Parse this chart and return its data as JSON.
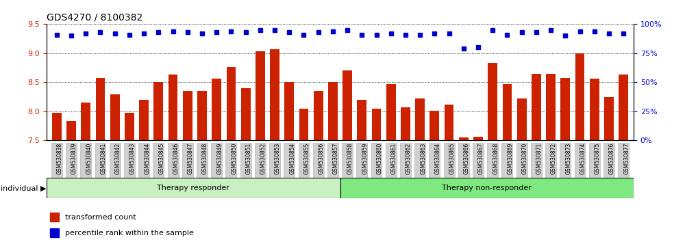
{
  "title": "GDS4270 / 8100382",
  "samples": [
    "GSM530838",
    "GSM530839",
    "GSM530840",
    "GSM530841",
    "GSM530842",
    "GSM530843",
    "GSM530844",
    "GSM530845",
    "GSM530846",
    "GSM530847",
    "GSM530848",
    "GSM530849",
    "GSM530850",
    "GSM530851",
    "GSM530852",
    "GSM530853",
    "GSM530854",
    "GSM530855",
    "GSM530856",
    "GSM530857",
    "GSM530858",
    "GSM530859",
    "GSM530860",
    "GSM530861",
    "GSM530862",
    "GSM530863",
    "GSM530864",
    "GSM530865",
    "GSM530866",
    "GSM530867",
    "GSM530868",
    "GSM530869",
    "GSM530870",
    "GSM530871",
    "GSM530872",
    "GSM530873",
    "GSM530874",
    "GSM530875",
    "GSM530876",
    "GSM530877"
  ],
  "bar_values": [
    7.97,
    7.83,
    8.15,
    8.58,
    8.29,
    7.98,
    8.2,
    8.5,
    8.63,
    8.35,
    8.35,
    8.56,
    8.76,
    8.4,
    9.03,
    9.07,
    8.5,
    8.05,
    8.35,
    8.5,
    8.7,
    8.2,
    8.05,
    8.47,
    8.07,
    8.22,
    8.01,
    8.12,
    7.55,
    7.56,
    8.83,
    8.47,
    8.22,
    8.65,
    8.65,
    8.58,
    9.0,
    8.56,
    8.25,
    8.63
  ],
  "percentile_values": [
    91,
    90,
    92,
    93,
    92,
    91,
    92,
    93,
    94,
    93,
    92,
    93,
    94,
    93,
    95,
    95,
    93,
    91,
    93,
    94,
    95,
    91,
    91,
    92,
    91,
    91,
    92,
    92,
    79,
    80,
    95,
    91,
    93,
    93,
    95,
    90,
    94,
    94,
    92,
    92
  ],
  "n_responder": 20,
  "n_nonresponder": 20,
  "group_labels": [
    "Therapy responder",
    "Therapy non-responder"
  ],
  "bar_color": "#cc2200",
  "dot_color": "#0000cc",
  "ylim_left": [
    7.5,
    9.5
  ],
  "ylim_right": [
    0,
    100
  ],
  "yticks_left": [
    7.5,
    8.0,
    8.5,
    9.0,
    9.5
  ],
  "yticks_right": [
    0,
    25,
    50,
    75,
    100
  ],
  "responder_facecolor": "#c8f0c0",
  "nonresponder_facecolor": "#80e880",
  "tick_bg_color": "#d0d0d0",
  "legend_items": [
    {
      "color": "#cc2200",
      "label": "transformed count"
    },
    {
      "color": "#0000cc",
      "label": "percentile rank within the sample"
    }
  ]
}
